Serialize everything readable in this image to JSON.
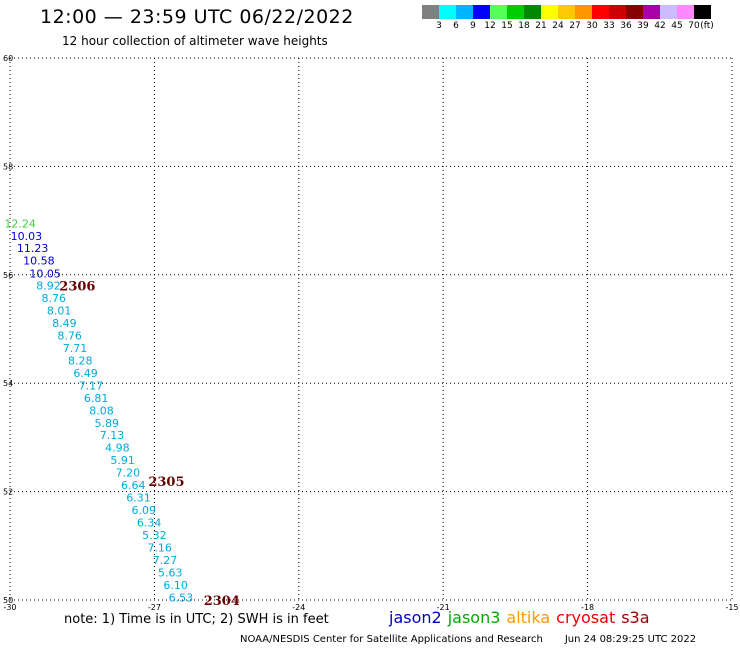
{
  "header": {
    "title": "12:00 — 23:59 UTC 06/22/2022",
    "subtitle": "12 hour collection of altimeter wave heights"
  },
  "color_scale": {
    "colors": [
      "#808080",
      "#00ffff",
      "#00b4ff",
      "#0000ff",
      "#55ff55",
      "#00cc00",
      "#008800",
      "#ffff00",
      "#ffc800",
      "#ff9600",
      "#ff0000",
      "#cc0000",
      "#880000",
      "#aa00aa",
      "#ccbbff",
      "#ff88ff",
      "#000000"
    ],
    "labels": [
      "3",
      "6",
      "9",
      "12",
      "15",
      "18",
      "21",
      "24",
      "27",
      "30",
      "33",
      "36",
      "39",
      "42",
      "45",
      "70"
    ],
    "unit": "(ft)"
  },
  "chart_data": {
    "type": "scatter",
    "title": "12:00 — 23:59 UTC 06/22/2022",
    "subtitle": "12 hour collection of altimeter wave heights",
    "xlim": [
      -30,
      -15
    ],
    "ylim": [
      50,
      60
    ],
    "x_ticks": [
      "-30",
      "-27",
      "-24",
      "-21",
      "-18",
      "-15"
    ],
    "y_ticks": [
      "50",
      "52",
      "54",
      "56",
      "58",
      "60"
    ],
    "grid": true,
    "series": [
      {
        "name": "jason3",
        "color": "#44cc44",
        "points": [
          {
            "x": -29.79,
            "y": 56.95,
            "label": "12.24"
          }
        ]
      },
      {
        "name": "jason2",
        "color": "#0000cc",
        "points": [
          {
            "x": -29.66,
            "y": 56.72,
            "label": "10.03"
          },
          {
            "x": -29.53,
            "y": 56.49,
            "label": "11.23"
          },
          {
            "x": -29.4,
            "y": 56.26,
            "label": "10.58"
          },
          {
            "x": -29.27,
            "y": 56.02,
            "label": "10.05"
          }
        ]
      },
      {
        "name": "cryosat",
        "color": "#00aadd",
        "points": [
          {
            "x": -29.2,
            "y": 55.8,
            "label": "8.92"
          },
          {
            "x": -29.09,
            "y": 55.57,
            "label": "8.76"
          },
          {
            "x": -28.98,
            "y": 55.34,
            "label": "8.01"
          },
          {
            "x": -28.87,
            "y": 55.11,
            "label": "8.49"
          },
          {
            "x": -28.76,
            "y": 54.88,
            "label": "8.76"
          },
          {
            "x": -28.65,
            "y": 54.65,
            "label": "7.71"
          },
          {
            "x": -28.54,
            "y": 54.42,
            "label": "8.28"
          },
          {
            "x": -28.43,
            "y": 54.19,
            "label": "6.49"
          },
          {
            "x": -28.32,
            "y": 53.96,
            "label": "7.17"
          },
          {
            "x": -28.21,
            "y": 53.73,
            "label": "6.81"
          },
          {
            "x": -28.1,
            "y": 53.5,
            "label": "8.08"
          },
          {
            "x": -27.99,
            "y": 53.27,
            "label": "5.89"
          },
          {
            "x": -27.88,
            "y": 53.04,
            "label": "7.13"
          },
          {
            "x": -27.77,
            "y": 52.81,
            "label": "4.98"
          },
          {
            "x": -27.66,
            "y": 52.58,
            "label": "5.91"
          },
          {
            "x": -27.55,
            "y": 52.35,
            "label": "7.20"
          },
          {
            "x": -27.44,
            "y": 52.12,
            "label": "6.64"
          },
          {
            "x": -27.33,
            "y": 51.89,
            "label": "6.31"
          },
          {
            "x": -27.22,
            "y": 51.66,
            "label": "6.09"
          },
          {
            "x": -27.11,
            "y": 51.43,
            "label": "6.34"
          },
          {
            "x": -27.0,
            "y": 51.2,
            "label": "5.32"
          },
          {
            "x": -26.89,
            "y": 50.97,
            "label": "7.16"
          },
          {
            "x": -26.78,
            "y": 50.74,
            "label": "7.27"
          },
          {
            "x": -26.67,
            "y": 50.51,
            "label": "5.63"
          },
          {
            "x": -26.56,
            "y": 50.28,
            "label": "6.10"
          },
          {
            "x": -26.45,
            "y": 50.05,
            "label": "6.53"
          }
        ]
      }
    ],
    "pass_times": [
      {
        "x": -28.6,
        "y": 55.8,
        "label": "2306",
        "color": "#660000"
      },
      {
        "x": -26.75,
        "y": 52.2,
        "label": "2305",
        "color": "#660000"
      },
      {
        "x": -25.6,
        "y": 50.0,
        "label": "2304",
        "color": "#660000"
      }
    ]
  },
  "footer": {
    "note": "note:  1) Time is in UTC;  2) SWH is in feet",
    "satellites": [
      {
        "name": "jason2",
        "color": "#0000cc"
      },
      {
        "name": "jason3",
        "color": "#00aa00"
      },
      {
        "name": "altika",
        "color": "#ff9900"
      },
      {
        "name": "cryosat",
        "color": "#ee0000"
      },
      {
        "name": "s3a",
        "color": "#990000"
      }
    ],
    "credit": "NOAA/NESDIS Center for Satellite Applications and Research",
    "timestamp": "Jun 24 08:29:25 UTC 2022"
  }
}
